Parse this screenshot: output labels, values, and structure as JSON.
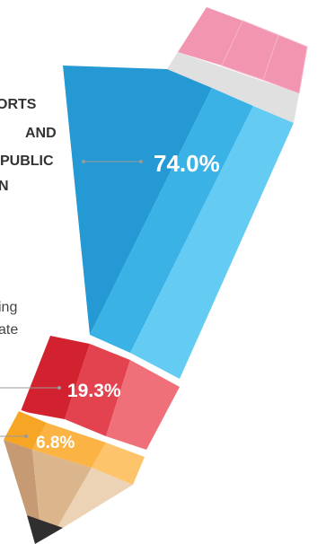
{
  "heading": [
    "ORTS",
    "AND",
    "PUBLIC",
    "N"
  ],
  "subtext": [
    "ing",
    "ate"
  ],
  "chart_data": {
    "type": "pie",
    "categories": [
      "",
      "",
      ""
    ],
    "values": [
      74.0,
      19.3,
      6.8
    ],
    "labels": [
      "74.0%",
      "19.3%",
      "6.8%"
    ],
    "title": ""
  },
  "colors": {
    "blue": [
      "#2499d4",
      "#3ab2e6",
      "#64cbf2"
    ],
    "red": [
      "#d2222f",
      "#e3434f",
      "#f0707a"
    ],
    "orange": [
      "#f7a524",
      "#fbb443",
      "#fdc46c"
    ],
    "eraser": "#f295b0",
    "band": "#e0e0e0",
    "wood": [
      "#c69a72",
      "#dbb58c",
      "#ecd3b5"
    ],
    "lead": "#2f2f2f",
    "leader": "#999999"
  }
}
